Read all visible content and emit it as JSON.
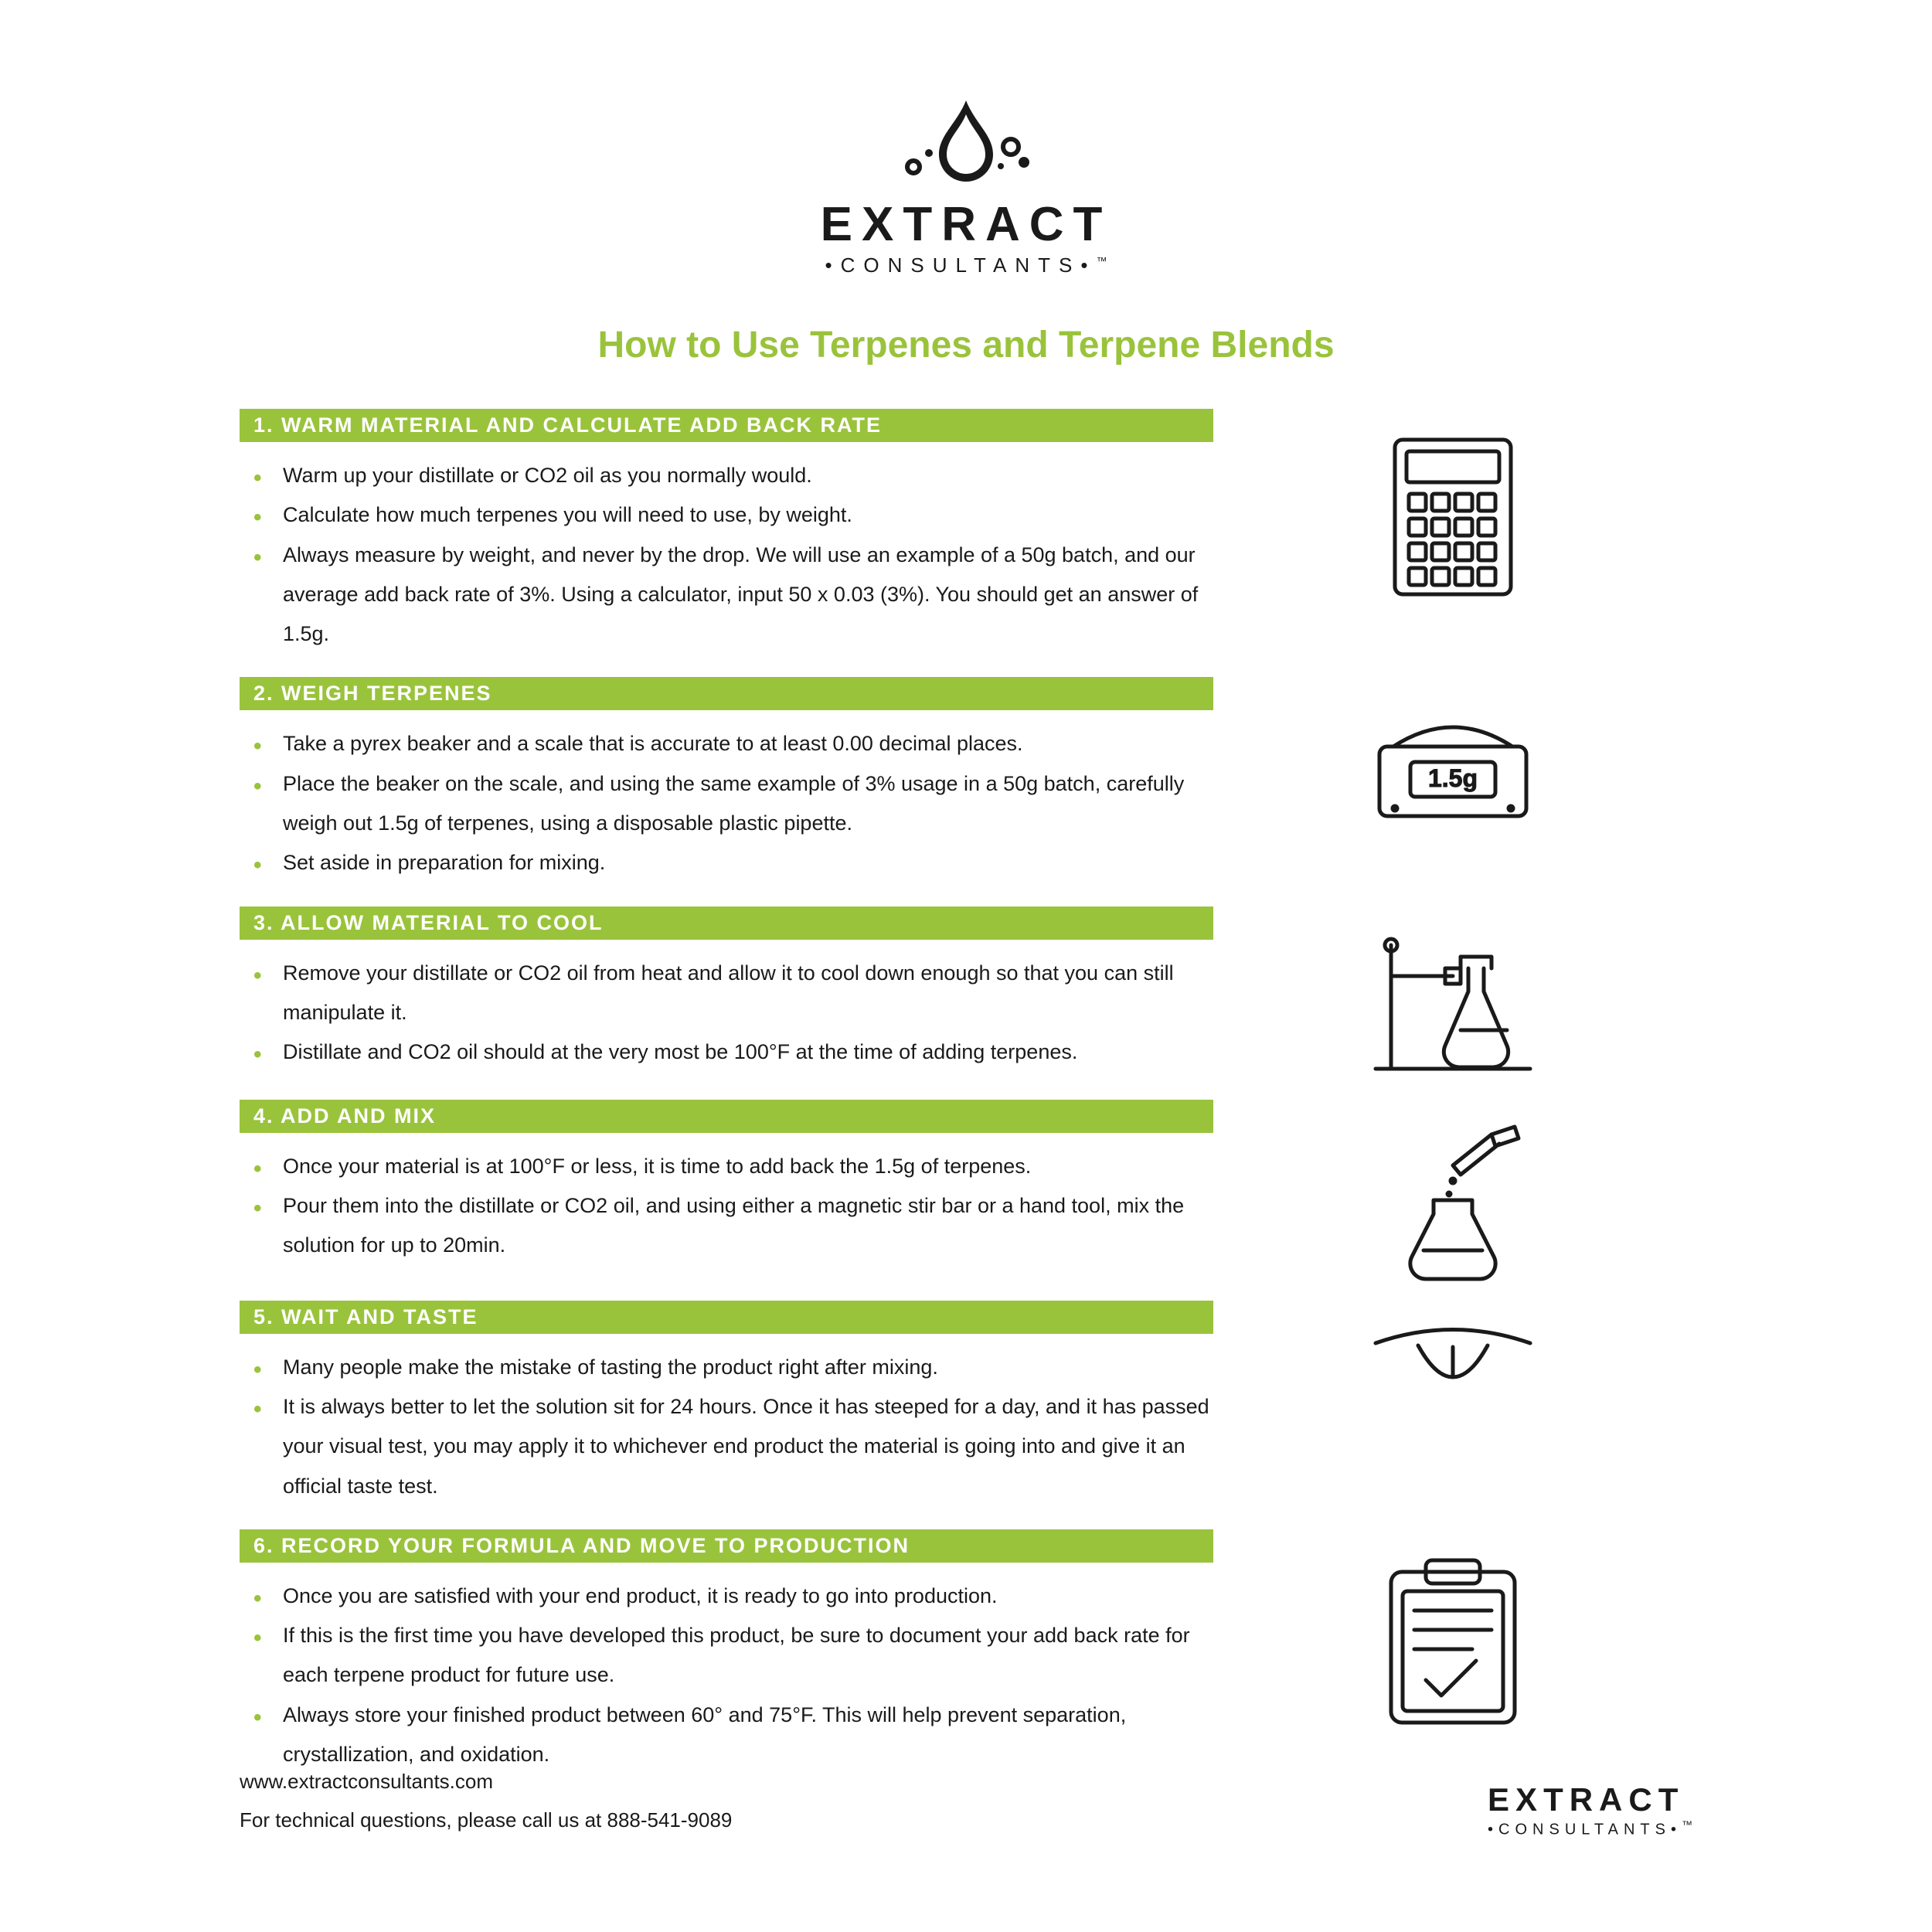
{
  "brand": {
    "main": "EXTRACT",
    "sub": "•CONSULTANTS•",
    "tm": "™"
  },
  "title": "How to Use Terpenes and Terpene Blends",
  "accent_color": "#9ac33c",
  "text_color": "#1a1a1a",
  "bg_color": "#ffffff",
  "steps": [
    {
      "header": "1. WARM MATERIAL AND CALCULATE ADD BACK RATE",
      "icon": "calculator",
      "bullets": [
        "Warm up your distillate or CO2 oil as you normally would.",
        "Calculate how much terpenes you will need to use, by weight.",
        "Always measure by weight, and never by the drop. We will use an example of a 50g batch, and our average add back rate of 3%. Using a calculator, input 50 x 0.03 (3%). You should get an answer of 1.5g."
      ]
    },
    {
      "header": "2. WEIGH TERPENES",
      "icon": "scale",
      "scale_label": "1.5g",
      "bullets": [
        "Take a pyrex beaker and a scale that is accurate to at least 0.00 decimal places.",
        "Place the beaker on the scale, and using the same example of 3% usage in a 50g batch, carefully weigh out 1.5g of terpenes, using a disposable plastic pipette.",
        "Set aside in preparation for mixing."
      ]
    },
    {
      "header": "3. ALLOW MATERIAL TO COOL",
      "icon": "flask-stand",
      "bullets": [
        "Remove your distillate or CO2 oil from heat and allow it to cool down enough so that you can still manipulate it.",
        "Distillate and CO2 oil should at the very most be 100°F at the time of adding terpenes."
      ]
    },
    {
      "header": "4. ADD AND MIX",
      "icon": "dropper-flask",
      "bullets": [
        "Once your material is at 100°F or less, it is time to add back the 1.5g of terpenes.",
        "Pour them into the distillate or CO2 oil, and using either a magnetic stir bar or a hand tool, mix the solution for up to 20min."
      ]
    },
    {
      "header": "5. WAIT AND TASTE",
      "icon": "tongue",
      "bullets": [
        "Many people make the mistake of tasting the product right after mixing.",
        "It is always better to let the solution sit for 24 hours. Once it has steeped for a day, and it has passed your visual test, you may apply it to whichever end product the material is going into and give it an official taste test."
      ]
    },
    {
      "header": "6. RECORD YOUR FORMULA AND MOVE TO PRODUCTION",
      "icon": "clipboard",
      "bullets": [
        "Once you are satisfied with your end product, it is ready to go into production.",
        "If this is the first time you have developed this product, be sure to document your add back rate for each terpene product for future use.",
        "Always store your finished product between 60° and 75°F. This will help prevent separation, crystallization, and oxidation."
      ]
    }
  ],
  "footer": {
    "url": "www.extractconsultants.com",
    "phone_line": "For technical questions, please call us at 888-541-9089"
  }
}
